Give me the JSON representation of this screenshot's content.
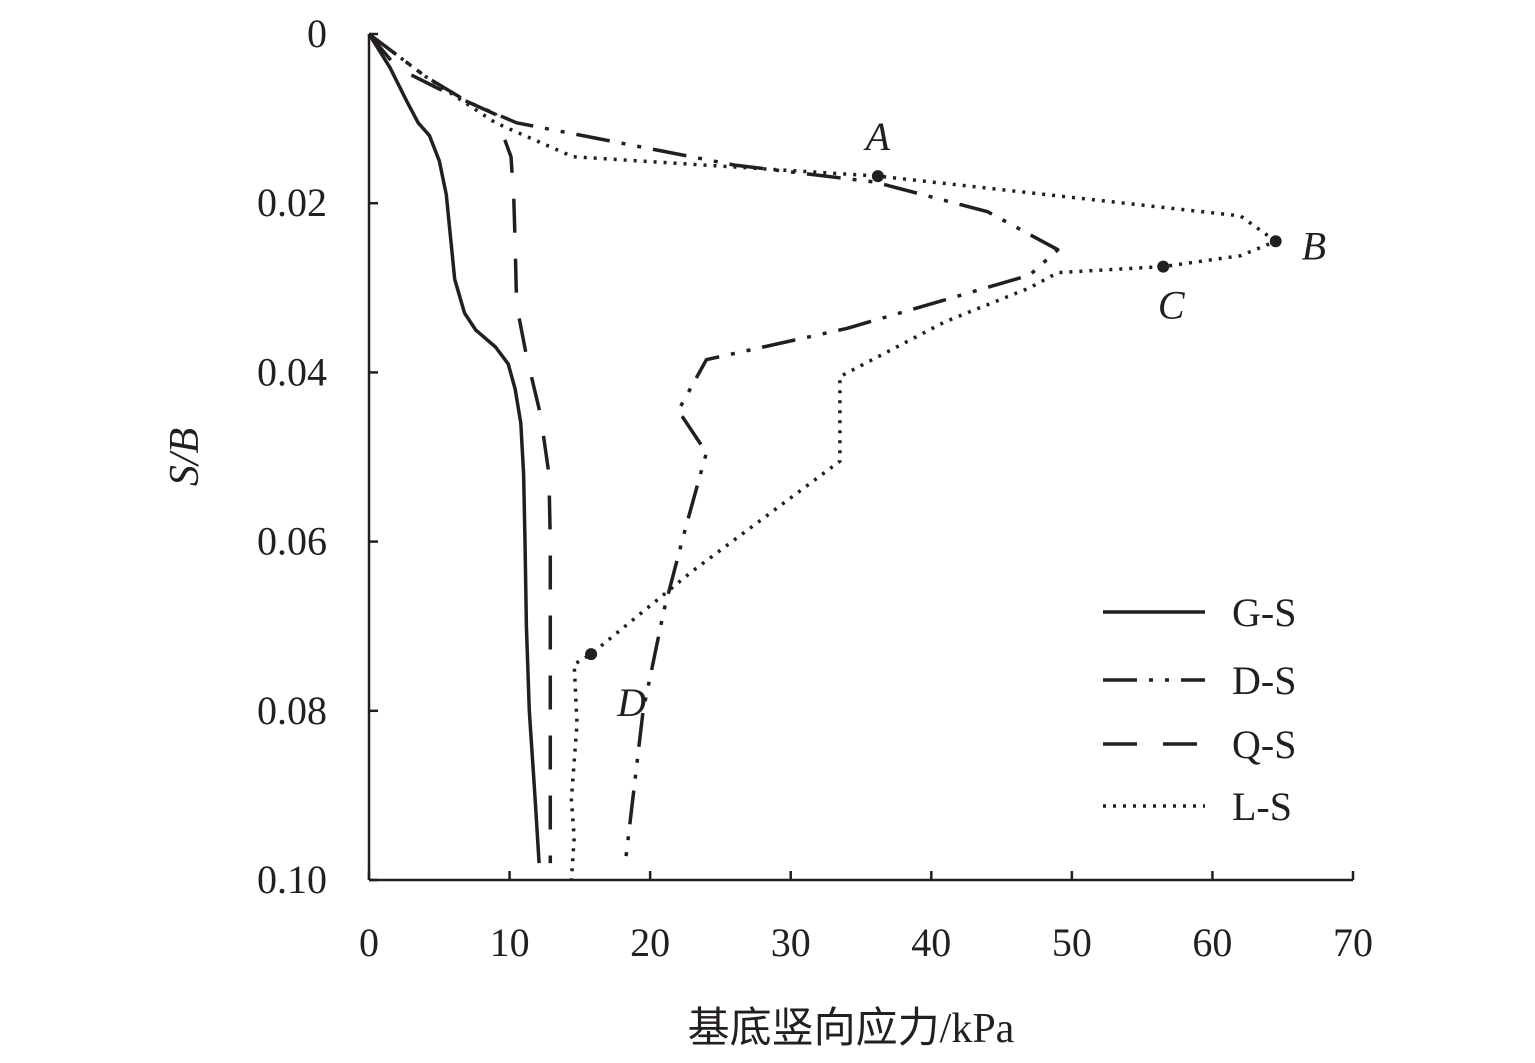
{
  "chart_data": {
    "type": "line",
    "title": "",
    "xlabel": "基底竖向应力/kPa",
    "ylabel": "S/B",
    "xlim": [
      0,
      70
    ],
    "ylim": [
      0,
      0.1
    ],
    "y_inverted": true,
    "x_ticks": [
      "0",
      "10",
      "20",
      "30",
      "40",
      "50",
      "60",
      "70"
    ],
    "y_ticks": [
      "0",
      "0.02",
      "0.04",
      "0.06",
      "0.08",
      "0.10"
    ],
    "grid": false,
    "legend_position": "bottom-right",
    "series": [
      {
        "name": "G-S",
        "style": "solid",
        "points": [
          [
            0,
            0
          ],
          [
            1.5,
            0.004
          ],
          [
            2.7,
            0.008
          ],
          [
            3.5,
            0.0105
          ],
          [
            4.3,
            0.012
          ],
          [
            5,
            0.015
          ],
          [
            5.5,
            0.019
          ],
          [
            5.8,
            0.024
          ],
          [
            6.1,
            0.029
          ],
          [
            6.8,
            0.033
          ],
          [
            7.6,
            0.035
          ],
          [
            9,
            0.037
          ],
          [
            9.9,
            0.039
          ],
          [
            10.4,
            0.042
          ],
          [
            10.8,
            0.046
          ],
          [
            11,
            0.052
          ],
          [
            11.1,
            0.06
          ],
          [
            11.2,
            0.07
          ],
          [
            11.4,
            0.08
          ],
          [
            11.8,
            0.09
          ],
          [
            12.1,
            0.098
          ]
        ]
      },
      {
        "name": "D-S",
        "style": "dash-dot-dot",
        "points": [
          [
            0,
            0
          ],
          [
            4,
            0.005
          ],
          [
            7,
            0.008
          ],
          [
            10.5,
            0.0105
          ],
          [
            26,
            0.0155
          ],
          [
            36,
            0.0175
          ],
          [
            44,
            0.021
          ],
          [
            49,
            0.0255
          ],
          [
            47,
            0.0285
          ],
          [
            34,
            0.0348
          ],
          [
            24,
            0.0385
          ],
          [
            22,
            0.0445
          ],
          [
            24,
            0.0495
          ],
          [
            22.5,
            0.0585
          ],
          [
            21,
            0.068
          ],
          [
            19.5,
            0.08
          ],
          [
            18.2,
            0.0985
          ]
        ]
      },
      {
        "name": "Q-S",
        "style": "dash",
        "points": [
          [
            0,
            0
          ],
          [
            2,
            0.004
          ],
          [
            5,
            0.0065
          ],
          [
            9,
            0.0095
          ],
          [
            10.1,
            0.0145
          ],
          [
            10.3,
            0.0195
          ],
          [
            10.4,
            0.025
          ],
          [
            10.5,
            0.032
          ],
          [
            11.2,
            0.038
          ],
          [
            12.2,
            0.045
          ],
          [
            12.8,
            0.052
          ],
          [
            12.9,
            0.06
          ],
          [
            12.9,
            0.07
          ],
          [
            12.9,
            0.08
          ],
          [
            12.9,
            0.09
          ],
          [
            12.9,
            0.098
          ]
        ]
      },
      {
        "name": "L-S",
        "style": "dot",
        "points": [
          [
            0,
            0
          ],
          [
            4,
            0.005
          ],
          [
            9,
            0.0105
          ],
          [
            14.5,
            0.0145
          ],
          [
            36.2,
            0.0168
          ],
          [
            62,
            0.0215
          ],
          [
            64.5,
            0.0245
          ],
          [
            62,
            0.0262
          ],
          [
            56.5,
            0.0275
          ],
          [
            49,
            0.0282
          ],
          [
            47,
            0.03
          ],
          [
            41,
            0.034
          ],
          [
            33.5,
            0.0405
          ],
          [
            33.5,
            0.0505
          ],
          [
            23,
            0.0635
          ],
          [
            15.8,
            0.0733
          ],
          [
            14.6,
            0.0745
          ],
          [
            14.8,
            0.0815
          ],
          [
            14.4,
            0.0905
          ],
          [
            14.6,
            0.095
          ],
          [
            14.4,
            0.1
          ]
        ]
      }
    ],
    "annotations": [
      {
        "label": "A",
        "x": 36.2,
        "y": 0.0168
      },
      {
        "label": "B",
        "x": 64.5,
        "y": 0.0245
      },
      {
        "label": "C",
        "x": 56.5,
        "y": 0.0275
      },
      {
        "label": "D",
        "x": 15.8,
        "y": 0.0733
      }
    ]
  }
}
